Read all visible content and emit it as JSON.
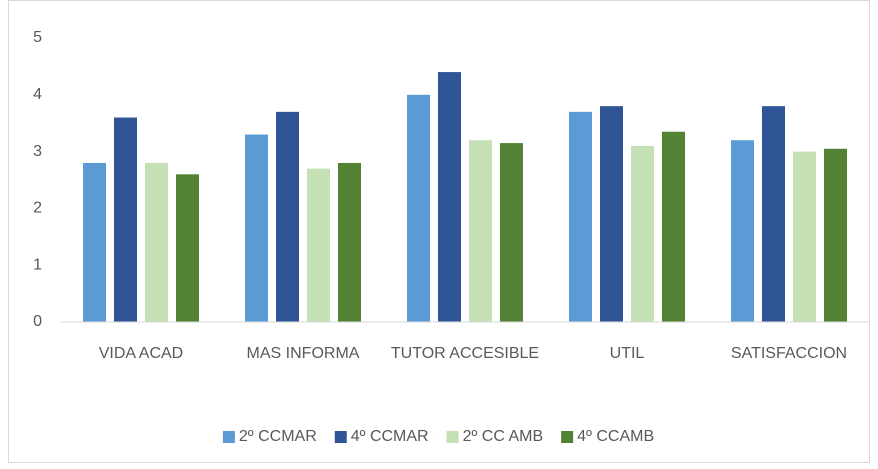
{
  "chart_data": {
    "type": "bar",
    "categories": [
      "VIDA ACAD",
      "MAS INFORMA",
      "TUTOR ACCESIBLE",
      "UTIL",
      "SATISFACCION"
    ],
    "series": [
      {
        "name": "2º CCMAR",
        "color": "#5b9bd5",
        "values": [
          2.8,
          3.3,
          4.0,
          3.7,
          3.2
        ]
      },
      {
        "name": "4º CCMAR",
        "color": "#2f5597",
        "values": [
          3.6,
          3.7,
          4.4,
          3.8,
          3.8
        ]
      },
      {
        "name": "2º CC AMB",
        "color": "#c5e0b4",
        "values": [
          2.8,
          2.7,
          3.2,
          3.1,
          3.0
        ]
      },
      {
        "name": "4º CCAMB",
        "color": "#548235",
        "values": [
          2.6,
          2.8,
          3.15,
          3.35,
          3.05
        ]
      }
    ],
    "ylim": [
      0,
      5
    ],
    "yticks": [
      0,
      1,
      2,
      3,
      4,
      5
    ],
    "grid": false,
    "legend": "bottom"
  }
}
